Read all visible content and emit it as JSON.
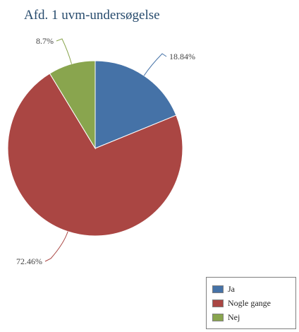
{
  "chart_data": {
    "type": "pie",
    "title": "Afd. 1 uvm-undersøgelse",
    "categories": [
      "Ja",
      "Nogle gange",
      "Nej"
    ],
    "values": [
      18.84,
      72.46,
      8.7
    ],
    "data_labels": [
      "18.84%",
      "72.46%",
      "8.7%"
    ],
    "colors": [
      "#4572a7",
      "#aa4643",
      "#89a54e"
    ],
    "legend_placement": "bottom-right",
    "title_color": "#274b6d",
    "label_color": "#444444"
  },
  "legend": {
    "items": [
      {
        "label": "Ja",
        "color": "#4572a7"
      },
      {
        "label": "Nogle gange",
        "color": "#aa4643"
      },
      {
        "label": "Nej",
        "color": "#89a54e"
      }
    ]
  }
}
